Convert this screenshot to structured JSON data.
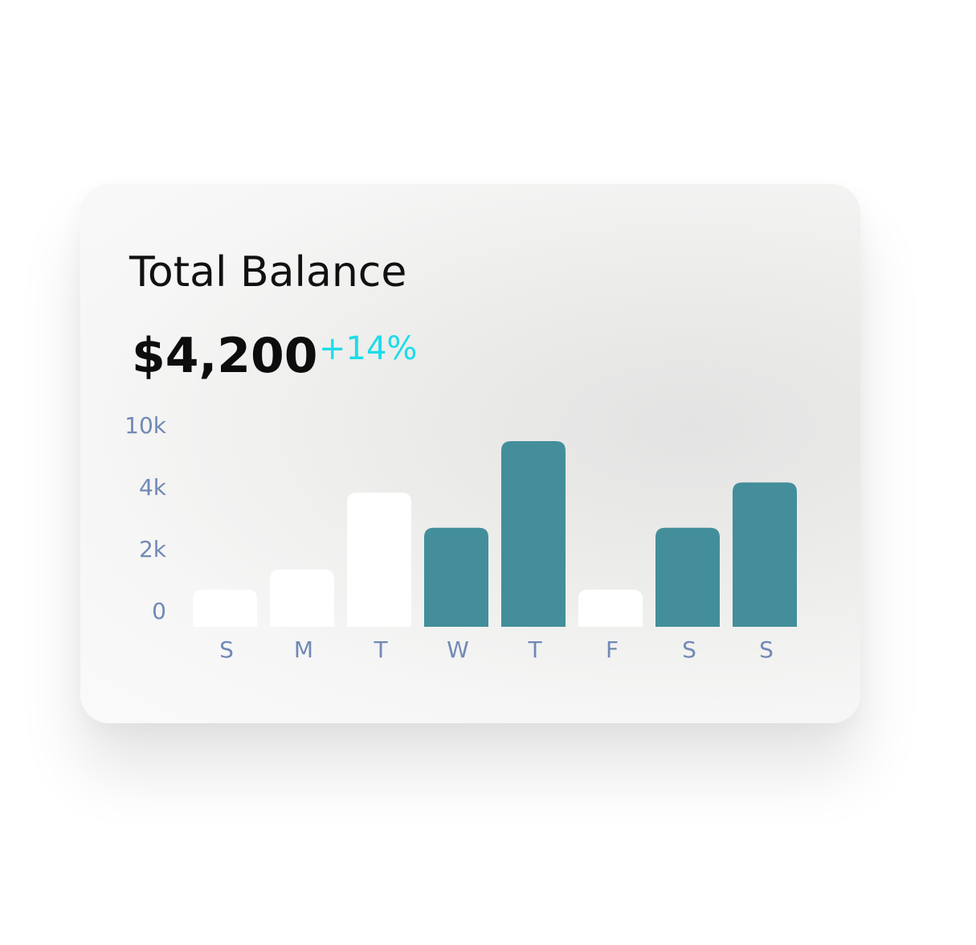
{
  "chart_data": {
    "type": "bar",
    "title": "Total Balance",
    "total": "$4,200",
    "change": "+14%",
    "categories": [
      "S",
      "M",
      "T",
      "W",
      "T",
      "F",
      "S",
      "S"
    ],
    "values": [
      1200,
      1850,
      5000,
      3200,
      10000,
      1200,
      3200,
      6000
    ],
    "colors": [
      "#ffffff",
      "#ffffff",
      "#ffffff",
      "#438e9a",
      "#438e9a",
      "#ffffff",
      "#438e9a",
      "#438e9a"
    ],
    "ylim": [
      0,
      10000
    ],
    "yticks": [
      0,
      {
        "value": 2000,
        "label": "2k"
      },
      {
        "value": 4000,
        "label": "4k"
      },
      {
        "value": 10000,
        "label": "10k"
      }
    ],
    "grid": false
  }
}
